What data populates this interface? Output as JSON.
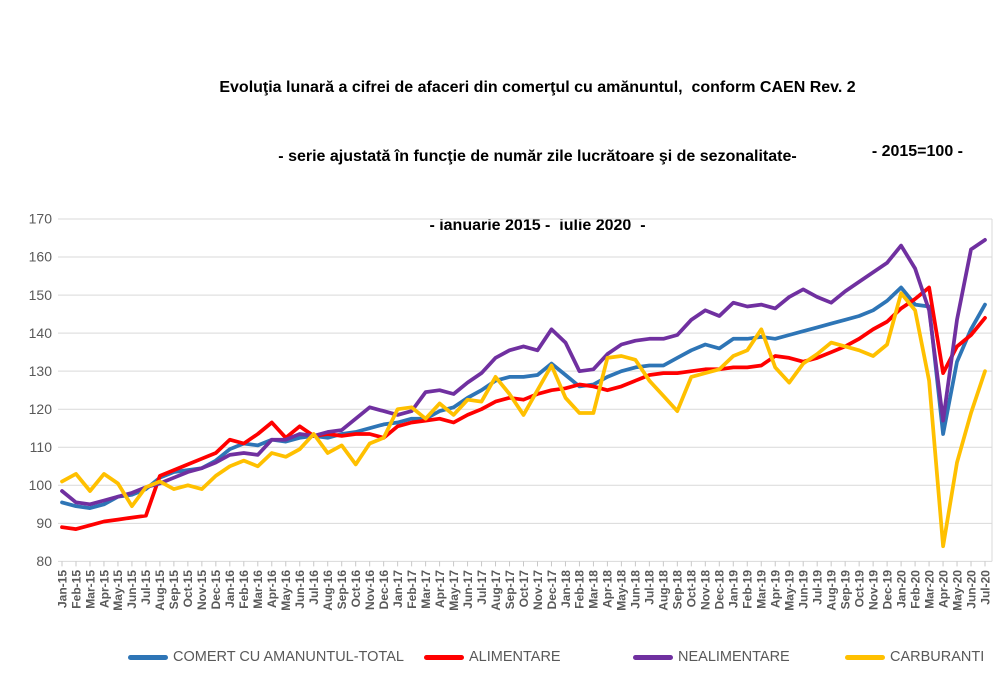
{
  "title": {
    "line1": "Evoluţia lunară a cifrei de afaceri din comerţul cu amănuntul,  conform CAEN Rev. 2",
    "line2": "- serie ajustată în funcţie de număr zile lucrătoare şi de sezonalitate-",
    "line3": "- ianuarie 2015 -  iulie 2020  -"
  },
  "index_note": "- 2015=100 -",
  "colors": {
    "gridline": "#D9D9D9",
    "tick": "#C8C8C8",
    "axis_text": "#595959",
    "title_text": "#000000",
    "background": "#FFFFFF"
  },
  "chart_data": {
    "type": "line",
    "title": "Evoluţia lunară a cifrei de afaceri din comerţul cu amănuntul, conform CAEN Rev. 2",
    "subtitle": "- serie ajustată în funcţie de număr zile lucrătoare şi de sezonalitate-",
    "period": "- ianuarie 2015 - iulie 2020 -",
    "axis_note": "- 2015=100 -",
    "grid": true,
    "legend_position": "bottom",
    "ylim": [
      80,
      170
    ],
    "ytick_step": 10,
    "categories": [
      "Jan-15",
      "Feb-15",
      "Mar-15",
      "Apr-15",
      "May-15",
      "Jun-15",
      "Jul-15",
      "Aug-15",
      "Sep-15",
      "Oct-15",
      "Nov-15",
      "Dec-15",
      "Jan-16",
      "Feb-16",
      "Mar-16",
      "Apr-16",
      "May-16",
      "Jun-16",
      "Jul-16",
      "Aug-16",
      "Sep-16",
      "Oct-16",
      "Nov-16",
      "Dec-16",
      "Jan-17",
      "Feb-17",
      "Mar-17",
      "Apr-17",
      "May-17",
      "Jun-17",
      "Jul-17",
      "Aug-17",
      "Sep-17",
      "Oct-17",
      "Nov-17",
      "Dec-17",
      "Jan-18",
      "Feb-18",
      "Mar-18",
      "Apr-18",
      "May-18",
      "Jun-18",
      "Jul-18",
      "Aug-18",
      "Sep-18",
      "Oct-18",
      "Nov-18",
      "Dec-18",
      "Jan-19",
      "Feb-19",
      "Mar-19",
      "Apr-19",
      "May-19",
      "Jun-19",
      "Jul-19",
      "Aug-19",
      "Sep-19",
      "Oct-19",
      "Nov-19",
      "Dec-19",
      "Jan-20",
      "Feb-20",
      "Mar-20",
      "Apr-20",
      "May-20",
      "Jun-20",
      "Jul-20"
    ],
    "series": [
      {
        "name": "COMERT CU AMANUNTUL-TOTAL",
        "color": "#2E75B6",
        "values": [
          95.5,
          94.5,
          94,
          95,
          97,
          97.5,
          99,
          102,
          103.5,
          104,
          104.5,
          106.5,
          109.5,
          111,
          110.5,
          112,
          111.5,
          112.5,
          113,
          112.5,
          113.5,
          114,
          115,
          116,
          116.5,
          117.5,
          117.5,
          119.5,
          120.5,
          123,
          125,
          127.5,
          128.5,
          128.5,
          129,
          132,
          129,
          126,
          126.5,
          128.5,
          130,
          131,
          131.5,
          131.5,
          133.5,
          135.5,
          137,
          136,
          138.5,
          138.5,
          139,
          138.5,
          139.5,
          140.5,
          141.5,
          142.5,
          143.5,
          144.5,
          146,
          148.5,
          152,
          147.5,
          147,
          113.5,
          132.5,
          141,
          147.5
        ]
      },
      {
        "name": "ALIMENTARE",
        "color": "#FF0000",
        "values": [
          89,
          88.5,
          89.5,
          90.5,
          91,
          91.5,
          92,
          102.5,
          104,
          105.5,
          107,
          108.5,
          112,
          111,
          113.5,
          116.5,
          112.5,
          115.5,
          113,
          113.5,
          113,
          113.5,
          113.5,
          112.5,
          115.5,
          116.5,
          117,
          117.5,
          116.5,
          118.5,
          120,
          122,
          123,
          122.5,
          124,
          125,
          125.5,
          126.5,
          126,
          125,
          126,
          127.5,
          129,
          129.5,
          129.5,
          130,
          130.5,
          130.5,
          131,
          131,
          131.5,
          134,
          133.5,
          132.5,
          133.5,
          135,
          136.5,
          138.5,
          141,
          143,
          146.5,
          149,
          152,
          129.5,
          136.5,
          139.5,
          144
        ]
      },
      {
        "name": "NEALIMENTARE",
        "color": "#7030A0",
        "values": [
          98.5,
          95.5,
          95,
          96,
          97,
          98,
          99.5,
          100.5,
          102,
          103.5,
          104.5,
          106,
          108,
          108.5,
          108,
          112,
          112,
          113.5,
          113,
          114,
          114.5,
          117.5,
          120.5,
          119.5,
          118.5,
          119.5,
          124.5,
          125,
          124,
          127,
          129.5,
          133.5,
          135.5,
          136.5,
          135.5,
          141,
          137.5,
          130,
          130.5,
          134.5,
          137,
          138,
          138.5,
          138.5,
          139.5,
          143.5,
          146,
          144.5,
          148,
          147,
          147.5,
          146.5,
          149.5,
          151.5,
          149.5,
          148,
          151,
          153.5,
          156,
          158.5,
          163,
          157,
          146,
          117,
          143.5,
          162,
          164.5
        ]
      },
      {
        "name": "CARBURANTI",
        "color": "#FFC000",
        "values": [
          101,
          103,
          98.5,
          103,
          100.5,
          94.5,
          99.5,
          101,
          99,
          100,
          99,
          102.5,
          105,
          106.5,
          105,
          108.5,
          107.5,
          109.5,
          113.5,
          108.5,
          110.5,
          105.5,
          111,
          112.5,
          120,
          120.5,
          117.5,
          121.5,
          118.5,
          122.5,
          122,
          128.5,
          124,
          118.5,
          125,
          131.5,
          123,
          119,
          119,
          133.5,
          134,
          133,
          127.5,
          123.5,
          119.5,
          128.5,
          129.5,
          130.5,
          134,
          135.5,
          141,
          131,
          127,
          132,
          134.5,
          137.5,
          136.5,
          135.5,
          134,
          137,
          150.5,
          146,
          127.5,
          84,
          106,
          119,
          130
        ]
      }
    ]
  }
}
